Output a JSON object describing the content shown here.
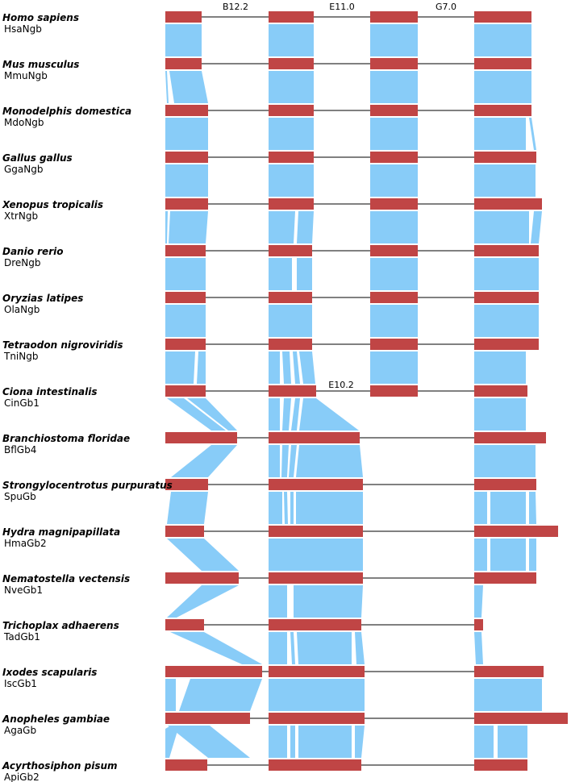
{
  "colors": {
    "exon": "#c04545",
    "alignment": "#88ccf8",
    "backbone": "#000000",
    "background": "#ffffff"
  },
  "intron_labels": [
    "B12.2",
    "E11.0",
    "G7.0",
    "E10.2"
  ],
  "rows": [
    {
      "species": "Homo sapiens",
      "gene": "HsaNgb"
    },
    {
      "species": "Mus musculus",
      "gene": "MmuNgb"
    },
    {
      "species": "Monodelphis domestica",
      "gene": "MdoNgb"
    },
    {
      "species": "Gallus gallus",
      "gene": "GgaNgb"
    },
    {
      "species": "Xenopus tropicalis",
      "gene": "XtrNgb"
    },
    {
      "species": "Danio rerio",
      "gene": "DreNgb"
    },
    {
      "species": "Oryzias latipes",
      "gene": "OlaNgb"
    },
    {
      "species": "Tetraodon nigroviridis",
      "gene": "TniNgb"
    },
    {
      "species": "Ciona intestinalis",
      "gene": "CinGb1"
    },
    {
      "species": "Branchiostoma floridae",
      "gene": "BflGb4"
    },
    {
      "species": "Strongylocentrotus purpuratus",
      "gene": "SpuGb"
    },
    {
      "species": "Hydra magnipapillata",
      "gene": "HmaGb2"
    },
    {
      "species": "Nematostella vectensis",
      "gene": "NveGb1"
    },
    {
      "species": "Trichoplax adhaerens",
      "gene": "TadGb1"
    },
    {
      "species": "Ixodes scapularis",
      "gene": "IscGb1"
    },
    {
      "species": "Anopheles gambiae",
      "gene": "AgaGb"
    },
    {
      "species": "Acyrthosiphon pisum",
      "gene": "ApiGb2"
    }
  ]
}
